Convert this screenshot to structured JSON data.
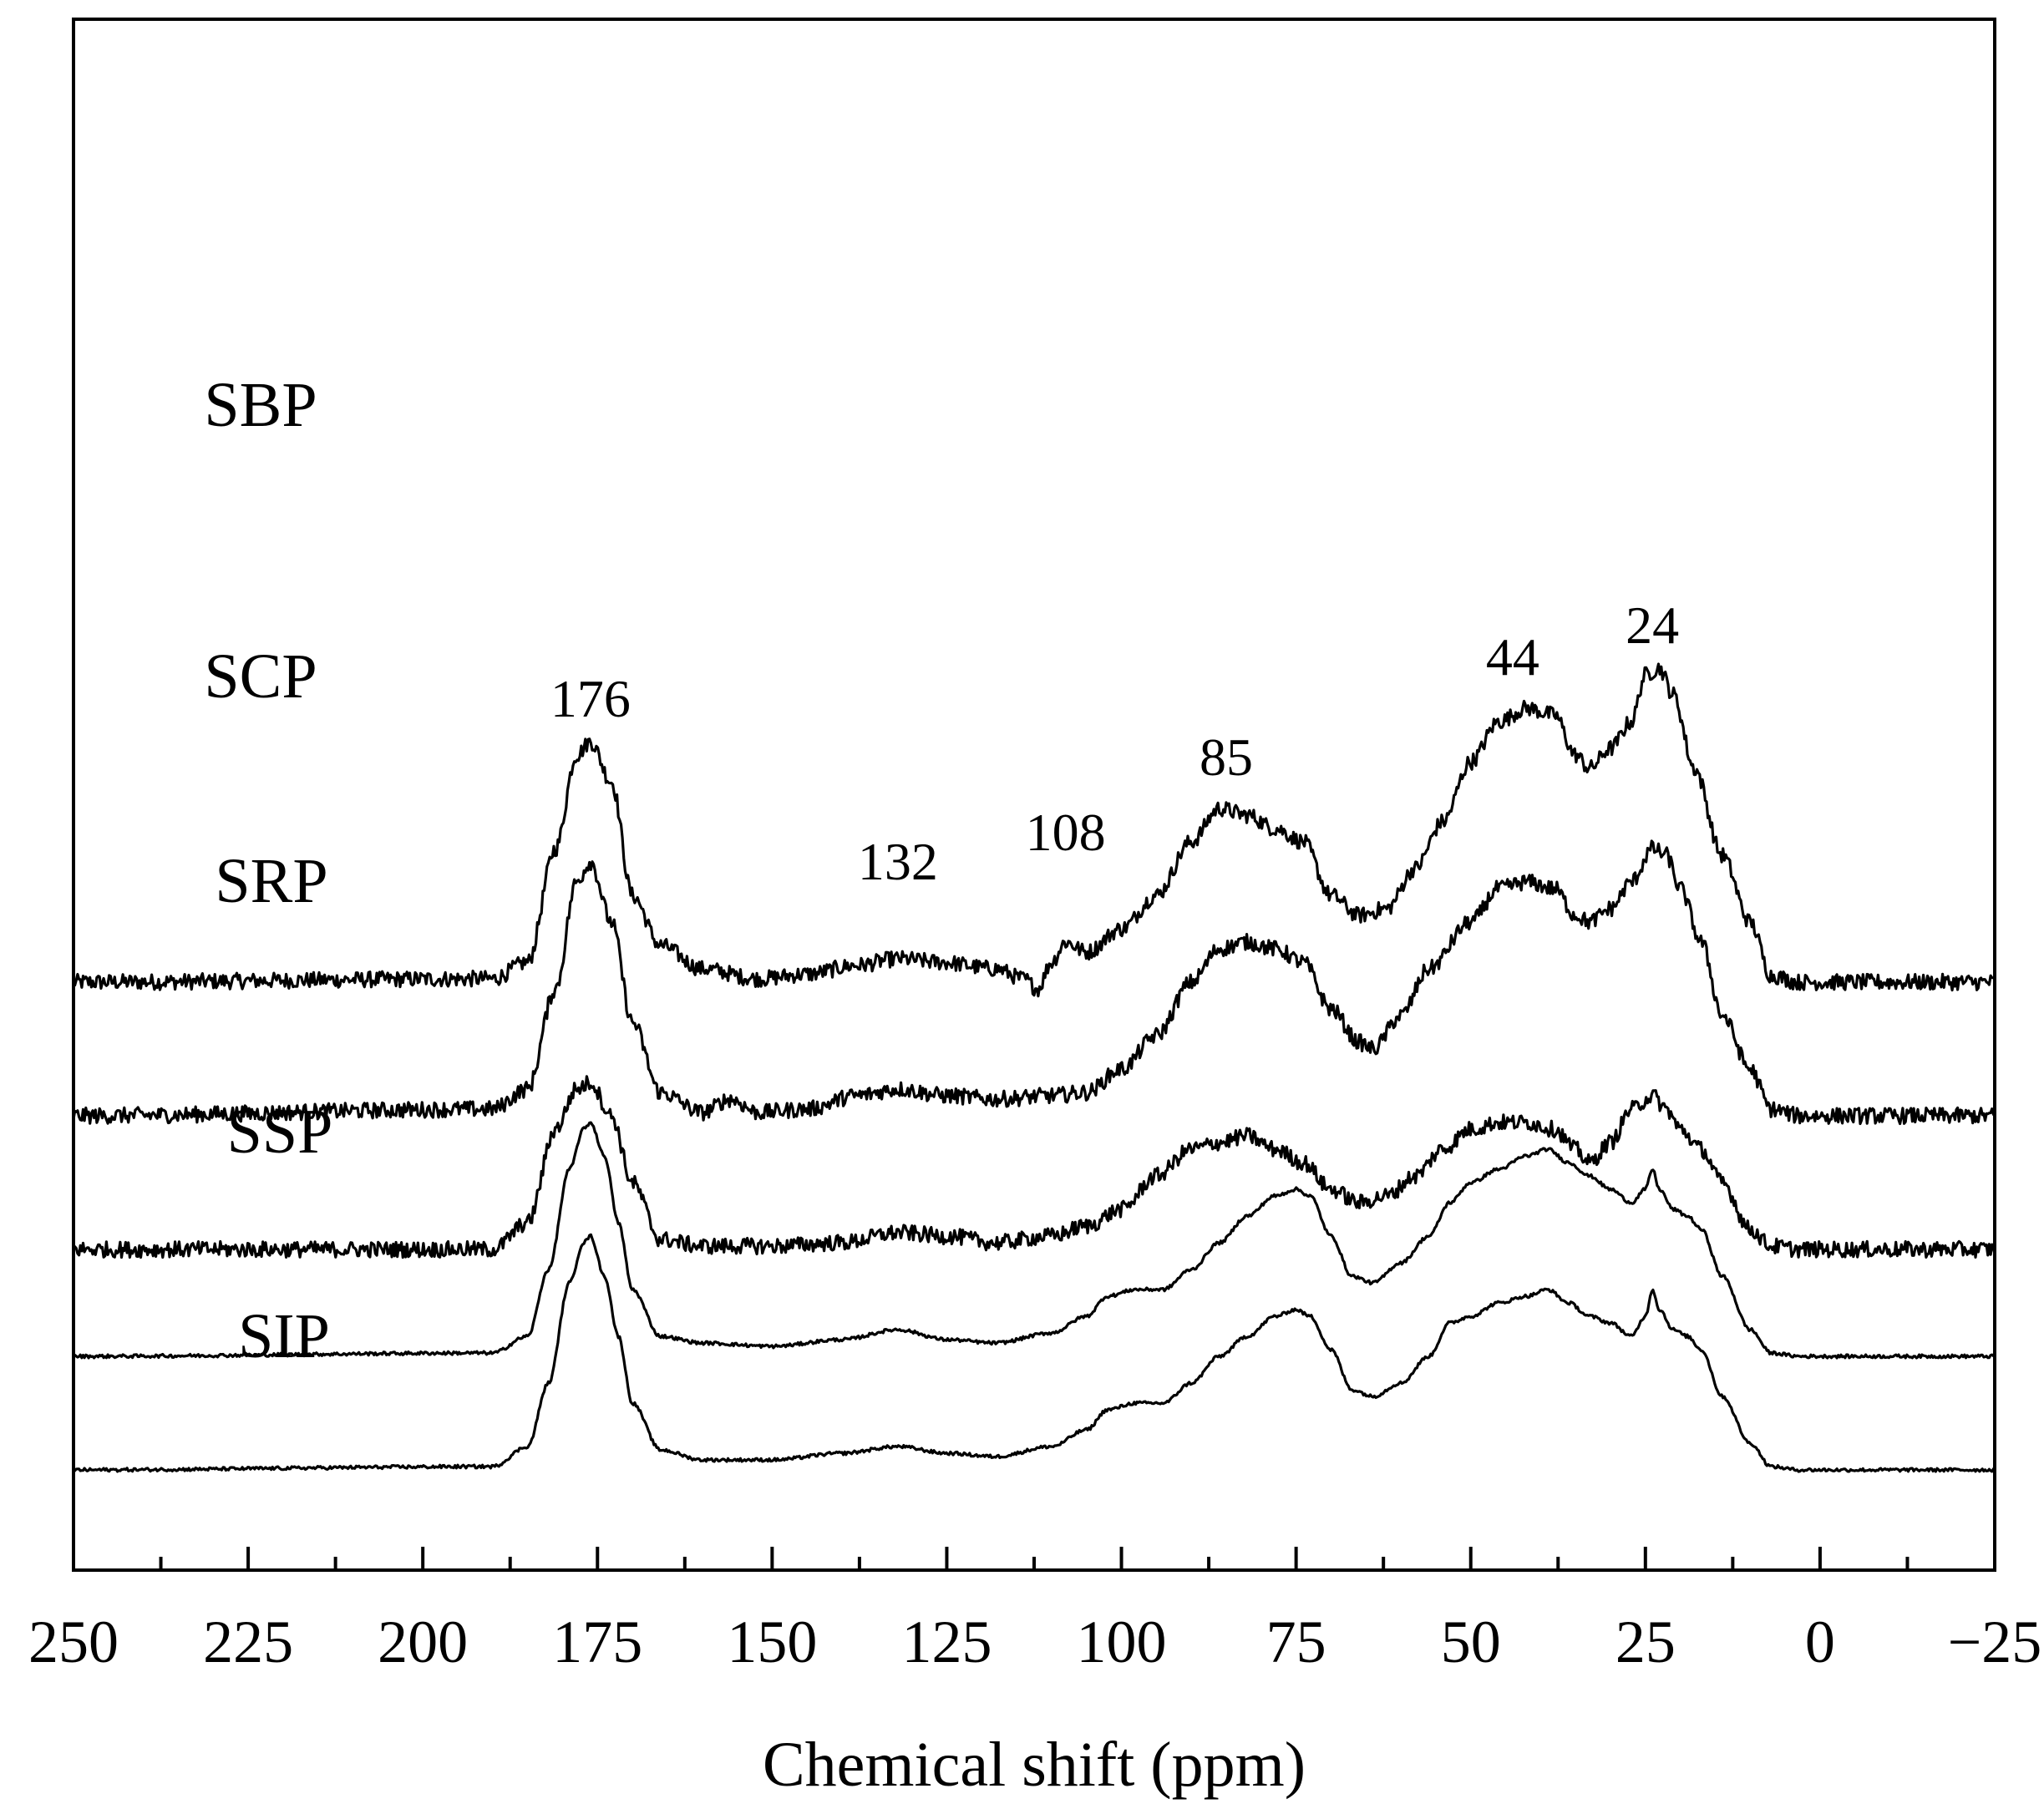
{
  "chart_data": {
    "type": "line",
    "title": "",
    "xlabel": "Chemical shift (ppm)",
    "ylabel": "",
    "xlim": [
      250,
      -25
    ],
    "x_reversed": true,
    "x_ticks": [
      250,
      225,
      200,
      175,
      150,
      125,
      100,
      75,
      50,
      25,
      0,
      -25
    ],
    "x_tick_labels": [
      "250",
      "225",
      "200",
      "175",
      "150",
      "125",
      "100",
      "75",
      "50",
      "25",
      "0",
      "−25"
    ],
    "y_ticks_shown": false,
    "grid": false,
    "legend": "none",
    "y_units": "relative intensity (stacked, offset)",
    "peak_labels": [
      {
        "ppm": 176,
        "text": "176"
      },
      {
        "ppm": 132,
        "text": "132"
      },
      {
        "ppm": 108,
        "text": "108"
      },
      {
        "ppm": 85,
        "text": "85"
      },
      {
        "ppm": 44,
        "text": "44"
      },
      {
        "ppm": 24,
        "text": "24"
      }
    ],
    "series": [
      {
        "name": "SBP",
        "offset": 7.3,
        "noise": 0.12,
        "points": [
          [
            250,
            0
          ],
          [
            190,
            0.05
          ],
          [
            185,
            0.3
          ],
          [
            181,
            2.0
          ],
          [
            178,
            3.4
          ],
          [
            176,
            3.6
          ],
          [
            173,
            3.0
          ],
          [
            170,
            1.3
          ],
          [
            166,
            0.55
          ],
          [
            160,
            0.2
          ],
          [
            152,
            0.05
          ],
          [
            145,
            0.12
          ],
          [
            138,
            0.25
          ],
          [
            132,
            0.35
          ],
          [
            126,
            0.3
          ],
          [
            118,
            0.2
          ],
          [
            114,
            0.05
          ],
          [
            112,
            -0.1
          ],
          [
            110,
            0.3
          ],
          [
            108,
            0.6
          ],
          [
            105,
            0.45
          ],
          [
            100,
            0.8
          ],
          [
            95,
            1.3
          ],
          [
            90,
            2.1
          ],
          [
            86,
            2.6
          ],
          [
            82,
            2.5
          ],
          [
            78,
            2.3
          ],
          [
            74,
            2.1
          ],
          [
            70,
            1.3
          ],
          [
            66,
            1.0
          ],
          [
            62,
            1.1
          ],
          [
            58,
            1.7
          ],
          [
            54,
            2.4
          ],
          [
            50,
            3.3
          ],
          [
            46,
            3.9
          ],
          [
            42,
            4.1
          ],
          [
            38,
            4.0
          ],
          [
            35,
            3.4
          ],
          [
            33,
            3.2
          ],
          [
            30,
            3.5
          ],
          [
            27,
            3.9
          ],
          [
            25,
            4.6
          ],
          [
            23,
            4.7
          ],
          [
            21,
            4.3
          ],
          [
            18,
            3.2
          ],
          [
            14,
            1.9
          ],
          [
            10,
            0.9
          ],
          [
            7,
            0.1
          ],
          [
            3,
            0
          ],
          [
            -25,
            0
          ]
        ]
      },
      {
        "name": "SCP",
        "offset": 5.3,
        "noise": 0.12,
        "points": [
          [
            250,
            0
          ],
          [
            190,
            0.1
          ],
          [
            185,
            0.4
          ],
          [
            181,
            1.9
          ],
          [
            178,
            3.5
          ],
          [
            176,
            3.8
          ],
          [
            173,
            2.9
          ],
          [
            170,
            1.4
          ],
          [
            166,
            0.35
          ],
          [
            160,
            0.05
          ],
          [
            156,
            0.25
          ],
          [
            152,
            0.05
          ],
          [
            145,
            0.1
          ],
          [
            138,
            0.3
          ],
          [
            132,
            0.4
          ],
          [
            125,
            0.3
          ],
          [
            118,
            0.25
          ],
          [
            110,
            0.3
          ],
          [
            105,
            0.35
          ],
          [
            100,
            0.7
          ],
          [
            95,
            1.2
          ],
          [
            90,
            2.0
          ],
          [
            86,
            2.5
          ],
          [
            82,
            2.6
          ],
          [
            78,
            2.5
          ],
          [
            74,
            2.3
          ],
          [
            70,
            1.6
          ],
          [
            66,
            1.1
          ],
          [
            64,
            1.0
          ],
          [
            60,
            1.5
          ],
          [
            56,
            2.2
          ],
          [
            50,
            2.9
          ],
          [
            46,
            3.4
          ],
          [
            42,
            3.5
          ],
          [
            38,
            3.4
          ],
          [
            35,
            3.0
          ],
          [
            33,
            2.9
          ],
          [
            30,
            3.1
          ],
          [
            27,
            3.5
          ],
          [
            24,
            4.0
          ],
          [
            22,
            3.9
          ],
          [
            20,
            3.4
          ],
          [
            17,
            2.6
          ],
          [
            14,
            1.5
          ],
          [
            10,
            0.7
          ],
          [
            7,
            0.1
          ],
          [
            3,
            0
          ],
          [
            -25,
            0
          ]
        ]
      },
      {
        "name": "SRP",
        "offset": 3.3,
        "noise": 0.12,
        "points": [
          [
            250,
            0
          ],
          [
            190,
            0
          ],
          [
            185,
            0.4
          ],
          [
            181,
            1.8
          ],
          [
            178,
            2.4
          ],
          [
            176,
            2.5
          ],
          [
            173,
            2.0
          ],
          [
            170,
            1.0
          ],
          [
            166,
            0.15
          ],
          [
            160,
            0.05
          ],
          [
            150,
            0.05
          ],
          [
            140,
            0.1
          ],
          [
            132,
            0.25
          ],
          [
            125,
            0.2
          ],
          [
            118,
            0.1
          ],
          [
            110,
            0.2
          ],
          [
            105,
            0.35
          ],
          [
            100,
            0.6
          ],
          [
            95,
            1.1
          ],
          [
            90,
            1.5
          ],
          [
            86,
            1.6
          ],
          [
            82,
            1.7
          ],
          [
            78,
            1.5
          ],
          [
            74,
            1.3
          ],
          [
            70,
            0.9
          ],
          [
            66,
            0.7
          ],
          [
            62,
            0.8
          ],
          [
            58,
            1.1
          ],
          [
            54,
            1.5
          ],
          [
            50,
            1.8
          ],
          [
            46,
            1.9
          ],
          [
            42,
            1.9
          ],
          [
            38,
            1.8
          ],
          [
            35,
            1.5
          ],
          [
            33,
            1.3
          ],
          [
            30,
            1.6
          ],
          [
            27,
            2.1
          ],
          [
            24,
            2.3
          ],
          [
            22,
            2.1
          ],
          [
            20,
            1.8
          ],
          [
            17,
            1.5
          ],
          [
            14,
            1.0
          ],
          [
            10,
            0.3
          ],
          [
            7,
            0.05
          ],
          [
            3,
            0
          ],
          [
            -25,
            0
          ]
        ]
      },
      {
        "name": "SSP",
        "offset": 1.7,
        "noise": 0.025,
        "points": [
          [
            250,
            0
          ],
          [
            190,
            0.05
          ],
          [
            185,
            0.3
          ],
          [
            182,
            1.3
          ],
          [
            179,
            2.8
          ],
          [
            177,
            3.4
          ],
          [
            176,
            3.5
          ],
          [
            174,
            3.0
          ],
          [
            172,
            2.0
          ],
          [
            170,
            1.0
          ],
          [
            166,
            0.3
          ],
          [
            160,
            0.2
          ],
          [
            150,
            0.15
          ],
          [
            140,
            0.25
          ],
          [
            132,
            0.4
          ],
          [
            125,
            0.25
          ],
          [
            118,
            0.2
          ],
          [
            110,
            0.35
          ],
          [
            105,
            0.6
          ],
          [
            102,
            0.9
          ],
          [
            98,
            1.0
          ],
          [
            94,
            1.0
          ],
          [
            90,
            1.3
          ],
          [
            86,
            1.7
          ],
          [
            82,
            2.1
          ],
          [
            78,
            2.4
          ],
          [
            75,
            2.5
          ],
          [
            73,
            2.4
          ],
          [
            70,
            1.8
          ],
          [
            67,
            1.2
          ],
          [
            64,
            1.1
          ],
          [
            60,
            1.4
          ],
          [
            56,
            1.8
          ],
          [
            53,
            2.3
          ],
          [
            50,
            2.6
          ],
          [
            46,
            2.8
          ],
          [
            42,
            3.0
          ],
          [
            39,
            3.1
          ],
          [
            36,
            2.9
          ],
          [
            33,
            2.7
          ],
          [
            30,
            2.5
          ],
          [
            27,
            2.3
          ],
          [
            25,
            2.5
          ],
          [
            24,
            2.8
          ],
          [
            23,
            2.5
          ],
          [
            21,
            2.2
          ],
          [
            19,
            2.1
          ],
          [
            17,
            1.9
          ],
          [
            14,
            1.2
          ],
          [
            10,
            0.4
          ],
          [
            7,
            0.05
          ],
          [
            3,
            0
          ],
          [
            -25,
            0
          ]
        ]
      },
      {
        "name": "SIP",
        "offset": 0,
        "noise": 0.025,
        "points": [
          [
            250,
            0
          ],
          [
            190,
            0.05
          ],
          [
            185,
            0.35
          ],
          [
            182,
            1.3
          ],
          [
            179,
            2.8
          ],
          [
            177,
            3.4
          ],
          [
            176,
            3.5
          ],
          [
            174,
            2.9
          ],
          [
            172,
            2.0
          ],
          [
            170,
            1.0
          ],
          [
            166,
            0.3
          ],
          [
            160,
            0.15
          ],
          [
            150,
            0.15
          ],
          [
            140,
            0.25
          ],
          [
            132,
            0.35
          ],
          [
            125,
            0.25
          ],
          [
            118,
            0.2
          ],
          [
            110,
            0.35
          ],
          [
            105,
            0.6
          ],
          [
            102,
            0.9
          ],
          [
            98,
            1.0
          ],
          [
            94,
            1.0
          ],
          [
            90,
            1.3
          ],
          [
            86,
            1.7
          ],
          [
            82,
            2.0
          ],
          [
            78,
            2.3
          ],
          [
            75,
            2.4
          ],
          [
            73,
            2.3
          ],
          [
            70,
            1.8
          ],
          [
            67,
            1.2
          ],
          [
            64,
            1.1
          ],
          [
            60,
            1.3
          ],
          [
            56,
            1.7
          ],
          [
            53,
            2.2
          ],
          [
            50,
            2.3
          ],
          [
            46,
            2.5
          ],
          [
            42,
            2.6
          ],
          [
            39,
            2.7
          ],
          [
            36,
            2.5
          ],
          [
            33,
            2.3
          ],
          [
            30,
            2.2
          ],
          [
            27,
            2.0
          ],
          [
            25,
            2.3
          ],
          [
            24,
            2.7
          ],
          [
            23,
            2.4
          ],
          [
            21,
            2.1
          ],
          [
            19,
            2.0
          ],
          [
            17,
            1.8
          ],
          [
            14,
            1.1
          ],
          [
            10,
            0.4
          ],
          [
            7,
            0.05
          ],
          [
            3,
            0
          ],
          [
            -25,
            0
          ]
        ]
      }
    ]
  }
}
